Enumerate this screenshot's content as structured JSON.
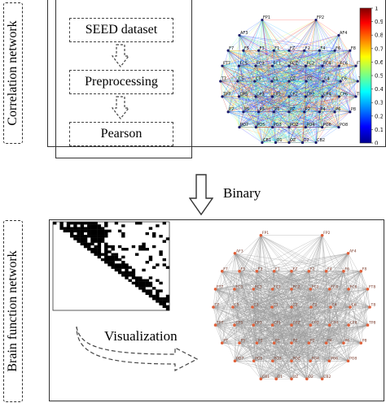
{
  "side_labels": {
    "top": "Correlation network",
    "bottom": "Brain function network"
  },
  "pipeline": {
    "steps": [
      "SEED dataset",
      "Preprocessing",
      "Pearson"
    ]
  },
  "transition": {
    "label": "Binary"
  },
  "visualization": {
    "label": "Visualization"
  },
  "colorbar": {
    "ticks": [
      "1",
      "0.9",
      "0.8",
      "0.7",
      "0.6",
      "0.5",
      "0.4",
      "0.3",
      "0.2",
      "0.1",
      "0"
    ],
    "colormap": "jet"
  },
  "electrodes": {
    "correlation": [
      "FP1",
      "FP2",
      "AF3",
      "AF4",
      "F7",
      "F5",
      "F3",
      "F1",
      "FZ",
      "F2",
      "F4",
      "F6",
      "F8",
      "FT7",
      "FC5",
      "FC3",
      "FC1",
      "FCZ",
      "FC2",
      "FC4",
      "FC6",
      "FT8",
      "T7",
      "C5",
      "C3",
      "C1",
      "CZ",
      "C2",
      "C4",
      "C6",
      "T8",
      "TP7",
      "CP5",
      "CP3",
      "CP1",
      "CPZ",
      "CP2",
      "CP4",
      "CP6",
      "TP8",
      "P7",
      "P5",
      "P3",
      "P1",
      "PZ",
      "P2",
      "P4",
      "P6",
      "P8",
      "PO7",
      "PO5",
      "PO3",
      "POZ",
      "PO4",
      "PO6",
      "PO8",
      "CB1",
      "O1",
      "OZ",
      "O2",
      "CB2"
    ],
    "brain": [
      "FP1",
      "FP2",
      "AF3",
      "AF4",
      "F7",
      "F5",
      "F3",
      "F1",
      "FZ",
      "F2",
      "F4",
      "F6",
      "F8",
      "FT7",
      "FC5",
      "FC3",
      "FC1",
      "FCZ",
      "FC2",
      "FC4",
      "FC6",
      "FT8",
      "T7",
      "C5",
      "C3",
      "C1",
      "CZ",
      "C2",
      "C4",
      "C6",
      "T8",
      "TP7",
      "CP5",
      "CP3",
      "CP1",
      "CPZ",
      "CP2",
      "CP4",
      "CP6",
      "TP8",
      "P7",
      "P5",
      "P3",
      "P1",
      "PZ",
      "P2",
      "P4",
      "P6",
      "P8",
      "PO7",
      "PO5",
      "PO3",
      "POZ",
      "PO4",
      "PO6",
      "PO8",
      "CB1",
      "O1",
      "OZ",
      "O2",
      "CB2"
    ]
  },
  "colors": {
    "border": "#333333",
    "gray_edge": "#9a9a9a",
    "node_orange": "#e0603a",
    "matrix_fill": "#000000"
  }
}
